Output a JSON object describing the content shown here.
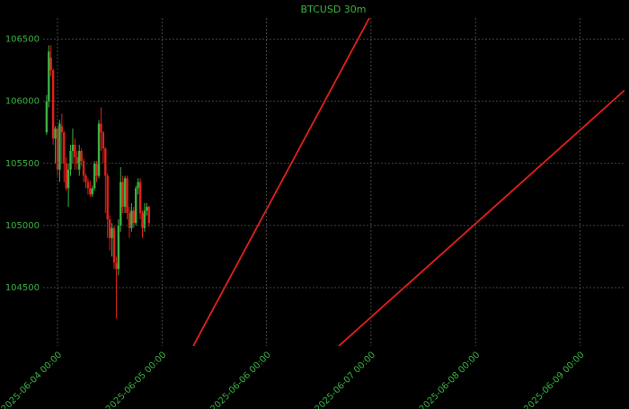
{
  "chart_data": {
    "type": "candlestick",
    "title": "BTCUSD 30m",
    "up_color": "#3cb043",
    "down_color": "#e0201b",
    "text_color": "#3cb043",
    "grid": true,
    "x": [
      "2025-06-03 21:30",
      "2025-06-03 22:00",
      "2025-06-03 22:30",
      "2025-06-03 23:00",
      "2025-06-03 23:30",
      "2025-06-04 00:00",
      "2025-06-04 00:30",
      "2025-06-04 01:00",
      "2025-06-04 01:30",
      "2025-06-04 02:00",
      "2025-06-04 02:30",
      "2025-06-04 03:00",
      "2025-06-04 03:30",
      "2025-06-04 04:00",
      "2025-06-04 04:30",
      "2025-06-04 05:00",
      "2025-06-04 05:30",
      "2025-06-04 06:00",
      "2025-06-04 06:30",
      "2025-06-04 07:00",
      "2025-06-04 07:30",
      "2025-06-04 08:00",
      "2025-06-04 08:30",
      "2025-06-04 09:00",
      "2025-06-04 09:30",
      "2025-06-04 10:00",
      "2025-06-04 10:30",
      "2025-06-04 11:00",
      "2025-06-04 11:30",
      "2025-06-04 12:00",
      "2025-06-04 12:30",
      "2025-06-04 13:00",
      "2025-06-04 13:30",
      "2025-06-04 14:00",
      "2025-06-04 14:30",
      "2025-06-04 15:00",
      "2025-06-04 15:30",
      "2025-06-04 16:00",
      "2025-06-04 16:30",
      "2025-06-04 17:00",
      "2025-06-04 17:30",
      "2025-06-04 18:00",
      "2025-06-04 18:30",
      "2025-06-04 19:00",
      "2025-06-04 19:30",
      "2025-06-04 20:00",
      "2025-06-04 20:30",
      "2025-06-04 21:00"
    ],
    "open": [
      105750,
      106000,
      106350,
      106250,
      105700,
      105780,
      105450,
      105800,
      105750,
      105500,
      105300,
      105450,
      105600,
      105650,
      105550,
      105450,
      105600,
      105520,
      105400,
      105350,
      105300,
      105250,
      105300,
      105500,
      105400,
      105820,
      105750,
      105620,
      105400,
      105050,
      104900,
      104980,
      104700,
      104650,
      105000,
      105350,
      105150,
      105380,
      105100,
      104980,
      105120,
      105020,
      105300,
      105350,
      105100,
      104980,
      105120,
      105150
    ],
    "high": [
      106050,
      106450,
      106450,
      106260,
      105800,
      105800,
      105850,
      105900,
      105760,
      105550,
      105500,
      105650,
      105780,
      105700,
      105600,
      105650,
      105620,
      105540,
      105420,
      105380,
      105360,
      105320,
      105520,
      105520,
      105850,
      105950,
      105760,
      105630,
      105420,
      105080,
      105020,
      105000,
      104750,
      105050,
      105470,
      105400,
      105400,
      105400,
      105150,
      105180,
      105150,
      105320,
      105380,
      105380,
      105120,
      105180,
      105180,
      105160
    ],
    "low": [
      105730,
      105950,
      106200,
      105650,
      105500,
      105400,
      105350,
      105500,
      105350,
      105280,
      105150,
      105400,
      105500,
      105450,
      105450,
      105400,
      105480,
      105350,
      105300,
      105250,
      105230,
      105230,
      105280,
      105350,
      105380,
      105600,
      105500,
      105100,
      104900,
      104800,
      104750,
      104650,
      104250,
      104600,
      104950,
      105100,
      105100,
      105050,
      104900,
      104950,
      104980,
      105000,
      105250,
      105050,
      104900,
      104950,
      105080,
      104990
    ],
    "close": [
      106000,
      106400,
      106250,
      105700,
      105780,
      105450,
      105820,
      105750,
      105500,
      105300,
      105450,
      105600,
      105650,
      105550,
      105500,
      105600,
      105520,
      105400,
      105350,
      105300,
      105250,
      105300,
      105500,
      105400,
      105820,
      105750,
      105620,
      105400,
      105050,
      104900,
      104980,
      104700,
      104650,
      105000,
      105350,
      105150,
      105380,
      105100,
      104980,
      105120,
      105020,
      105300,
      105350,
      105100,
      104980,
      105120,
      105150,
      105020
    ],
    "lines": [
      {
        "color": "#e0201b",
        "x": [
          "2025-06-05 07:10",
          "2025-06-06 23:37"
        ],
        "values": [
          104030,
          106670
        ]
      },
      {
        "color": "#e0201b",
        "x": [
          "2025-06-06 16:35",
          "2025-06-09 10:13"
        ],
        "values": [
          104030,
          106088
        ]
      }
    ],
    "xlim": [
      "2025-06-03 20:42",
      "2025-06-09 10:13"
    ],
    "xticks": [
      "2025-06-04 00:00",
      "2025-06-05 00:00",
      "2025-06-06 00:00",
      "2025-06-07 00:00",
      "2025-06-08 00:00",
      "2025-06-09 00:00"
    ],
    "ylim": [
      104030,
      106670
    ],
    "yticks": [
      104500,
      105000,
      105500,
      106000,
      106500
    ]
  }
}
